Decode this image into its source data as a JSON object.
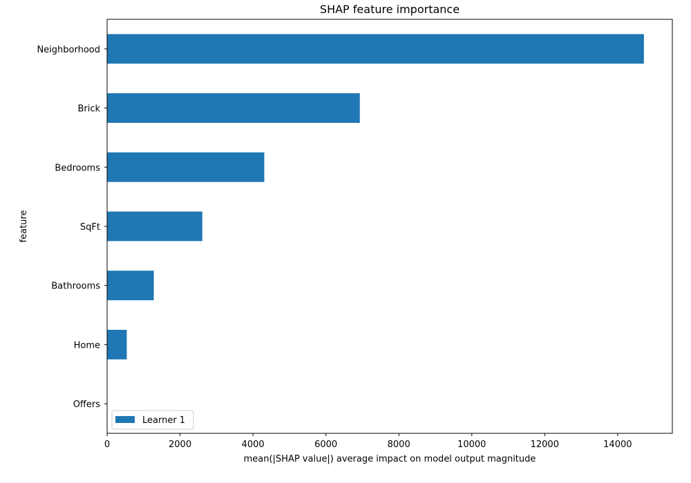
{
  "chart_data": {
    "type": "bar",
    "orientation": "horizontal",
    "title": "SHAP feature importance",
    "xlabel": "mean(|SHAP value|) average impact on model output magnitude",
    "ylabel": "feature",
    "xlim": [
      0,
      15500
    ],
    "xticks": [
      0,
      2000,
      4000,
      6000,
      8000,
      10000,
      12000,
      14000
    ],
    "categories": [
      "Neighborhood",
      "Brick",
      "Bedrooms",
      "SqFt",
      "Bathrooms",
      "Home",
      "Offers"
    ],
    "series": [
      {
        "name": "Learner 1",
        "color": "#1f77b4",
        "values": [
          14720,
          6930,
          4310,
          2610,
          1280,
          540,
          0
        ]
      }
    ],
    "grid": false,
    "legend_position": "lower-left"
  }
}
